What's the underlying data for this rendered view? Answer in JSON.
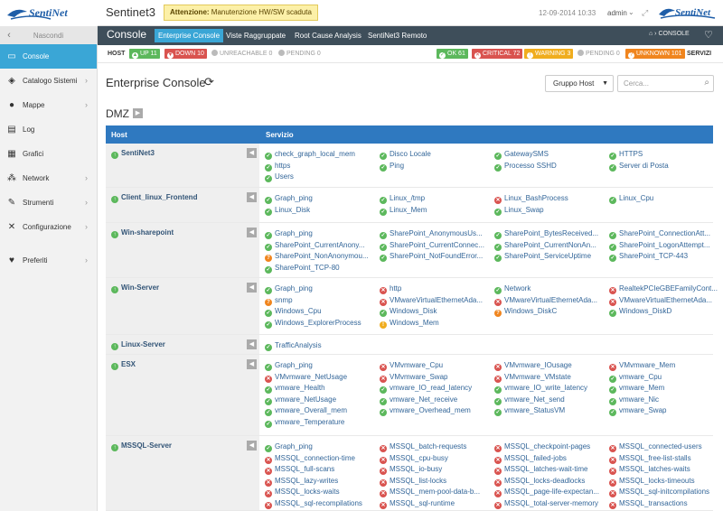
{
  "header": {
    "app_title": "Sentinet3",
    "alert_prefix": "Attenzione:",
    "alert_text": "Manutenzione HW/SW scaduta",
    "datetime": "12-09-2014 10:33",
    "user": "admin",
    "logo_text": "SentiNet"
  },
  "sidebar": {
    "hide_label": "Nascondi",
    "items": [
      {
        "label": "Console",
        "icon": "monitor-icon",
        "active": true
      },
      {
        "label": "Catalogo Sistemi",
        "icon": "tag-icon"
      },
      {
        "label": "Mappe",
        "icon": "globe-icon"
      },
      {
        "label": "Log",
        "icon": "document-icon"
      },
      {
        "label": "Grafici",
        "icon": "chart-icon"
      },
      {
        "label": "Network",
        "icon": "network-icon"
      },
      {
        "label": "Strumenti",
        "icon": "wrench-icon"
      },
      {
        "label": "Configurazione",
        "icon": "tools-icon"
      },
      {
        "label": "Preferiti",
        "icon": "heart-icon"
      }
    ]
  },
  "navbar": {
    "title": "Console",
    "tabs": [
      "Enterprise Console",
      "Viste Raggruppate",
      "Root Cause Analysis",
      "SentiNet3 Remoto"
    ],
    "breadcrumb": "CONSOLE"
  },
  "status": {
    "host_label": "HOST",
    "servizi_label": "SERVIZI",
    "host": [
      {
        "label": "UP 11",
        "color": "#5cb85c"
      },
      {
        "label": "DOWN 10",
        "color": "#d9534f"
      }
    ],
    "host_grey": [
      "UNREACHABLE 0",
      "PENDING 0"
    ],
    "services": [
      {
        "label": "OK 61",
        "color": "#5cb85c"
      },
      {
        "label": "CRITICAL 72",
        "color": "#d9534f"
      },
      {
        "label": "WARNING 3",
        "color": "#f0ad1e"
      }
    ],
    "services_grey": [
      "PENDING 0"
    ],
    "services_unknown": {
      "label": "UNKNOWN 101",
      "color": "#f0851e"
    }
  },
  "main": {
    "title": "Enterprise Console",
    "group_select": "Gruppo Host",
    "search_placeholder": "Cerca...",
    "section": "DMZ",
    "col_host": "Host",
    "col_service": "Servizio"
  },
  "rows": [
    {
      "host": "SentiNet3",
      "services": [
        [
          "ok",
          "check_graph_local_mem"
        ],
        [
          "ok",
          "Disco Locale"
        ],
        [
          "ok",
          "GatewaySMS"
        ],
        [
          "ok",
          "HTTPS"
        ],
        [
          "ok",
          "https"
        ],
        [
          "ok",
          "Ping"
        ],
        [
          "ok",
          "Processo SSHD"
        ],
        [
          "ok",
          "Server di Posta"
        ],
        [
          "ok",
          "Users"
        ]
      ]
    },
    {
      "host": "Client_linux_Frontend",
      "services": [
        [
          "ok",
          "Graph_ping"
        ],
        [
          "ok",
          "Linux_/tmp"
        ],
        [
          "crit",
          "Linux_BashProcess"
        ],
        [
          "ok",
          "Linux_Cpu"
        ],
        [
          "ok",
          "Linux_Disk"
        ],
        [
          "ok",
          "Linux_Mem"
        ],
        [
          "ok",
          "Linux_Swap"
        ]
      ]
    },
    {
      "host": "Win-sharepoint",
      "services": [
        [
          "ok",
          "Graph_ping"
        ],
        [
          "ok",
          "SharePoint_AnonymousUs..."
        ],
        [
          "ok",
          "SharePoint_BytesReceived..."
        ],
        [
          "ok",
          "SharePoint_ConnectionAtt..."
        ],
        [
          "ok",
          "SharePoint_CurrentAnony..."
        ],
        [
          "ok",
          "SharePoint_CurrentConnec..."
        ],
        [
          "ok",
          "SharePoint_CurrentNonAn..."
        ],
        [
          "ok",
          "SharePoint_LogonAttempt..."
        ],
        [
          "unk",
          "SharePoint_NonAnonymou..."
        ],
        [
          "ok",
          "SharePoint_NotFoundError..."
        ],
        [
          "ok",
          "SharePoint_ServiceUptime"
        ],
        [
          "ok",
          "SharePoint_TCP-443"
        ],
        [
          "ok",
          "SharePoint_TCP-80"
        ]
      ]
    },
    {
      "host": "Win-Server",
      "services": [
        [
          "ok",
          "Graph_ping"
        ],
        [
          "crit",
          "http"
        ],
        [
          "ok",
          "Network"
        ],
        [
          "crit",
          "RealtekPCIeGBEFamilyCont..."
        ],
        [
          "unk",
          "snmp"
        ],
        [
          "crit",
          "VMwareVirtualEthernetAda..."
        ],
        [
          "crit",
          "VMwareVirtualEthernetAda..."
        ],
        [
          "crit",
          "VMwareVirtualEthernetAda..."
        ],
        [
          "ok",
          "Windows_Cpu"
        ],
        [
          "ok",
          "Windows_Disk"
        ],
        [
          "unk",
          "Windows_DiskC"
        ],
        [
          "ok",
          "Windows_DiskD"
        ],
        [
          "ok",
          "Windows_ExplorerProcess"
        ],
        [
          "warn",
          "Windows_Mem"
        ]
      ]
    },
    {
      "host": "Linux-Server",
      "services": [
        [
          "ok",
          "TrafficAnalysis"
        ]
      ]
    },
    {
      "host": "ESX",
      "services": [
        [
          "ok",
          "Graph_ping"
        ],
        [
          "crit",
          "VMvmware_Cpu"
        ],
        [
          "crit",
          "VMvmware_IOusage"
        ],
        [
          "crit",
          "VMvmware_Mem"
        ],
        [
          "crit",
          "VMvmware_NetUsage"
        ],
        [
          "crit",
          "VMvmware_Swap"
        ],
        [
          "crit",
          "VMvmware_VMstate"
        ],
        [
          "ok",
          "vmware_Cpu"
        ],
        [
          "ok",
          "vmware_Health"
        ],
        [
          "ok",
          "vmware_IO_read_latency"
        ],
        [
          "ok",
          "vmware_IO_write_latency"
        ],
        [
          "ok",
          "vmware_Mem"
        ],
        [
          "ok",
          "vmware_NetUsage"
        ],
        [
          "ok",
          "vmware_Net_receive"
        ],
        [
          "ok",
          "vmware_Net_send"
        ],
        [
          "ok",
          "vmware_Nic"
        ],
        [
          "ok",
          "vmware_Overall_mem"
        ],
        [
          "ok",
          "vmware_Overhead_mem"
        ],
        [
          "ok",
          "vmware_StatusVM"
        ],
        [
          "ok",
          "vmware_Swap"
        ],
        [
          "ok",
          "vmware_Temperature"
        ]
      ]
    },
    {
      "host": "MSSQL-Server",
      "services": [
        [
          "ok",
          "Graph_ping"
        ],
        [
          "crit",
          "MSSQL_batch-requests"
        ],
        [
          "crit",
          "MSSQL_checkpoint-pages"
        ],
        [
          "crit",
          "MSSQL_connected-users"
        ],
        [
          "crit",
          "MSSQL_connection-time"
        ],
        [
          "crit",
          "MSSQL_cpu-busy"
        ],
        [
          "crit",
          "MSSQL_failed-jobs"
        ],
        [
          "crit",
          "MSSQL_free-list-stalls"
        ],
        [
          "crit",
          "MSSQL_full-scans"
        ],
        [
          "crit",
          "MSSQL_io-busy"
        ],
        [
          "crit",
          "MSSQL_latches-wait-time"
        ],
        [
          "crit",
          "MSSQL_latches-waits"
        ],
        [
          "crit",
          "MSSQL_lazy-writes"
        ],
        [
          "crit",
          "MSSQL_list-locks"
        ],
        [
          "crit",
          "MSSQL_locks-deadlocks"
        ],
        [
          "crit",
          "MSSQL_locks-timeouts"
        ],
        [
          "crit",
          "MSSQL_locks-waits"
        ],
        [
          "crit",
          "MSSQL_mem-pool-data-b..."
        ],
        [
          "crit",
          "MSSQL_page-life-expectan..."
        ],
        [
          "crit",
          "MSSQL_sql-initcompilations"
        ],
        [
          "crit",
          "MSSQL_sql-recompilations"
        ],
        [
          "crit",
          "MSSQL_sql-runtime"
        ],
        [
          "crit",
          "MSSQL_total-server-memory"
        ],
        [
          "crit",
          "MSSQL_transactions"
        ]
      ]
    }
  ]
}
